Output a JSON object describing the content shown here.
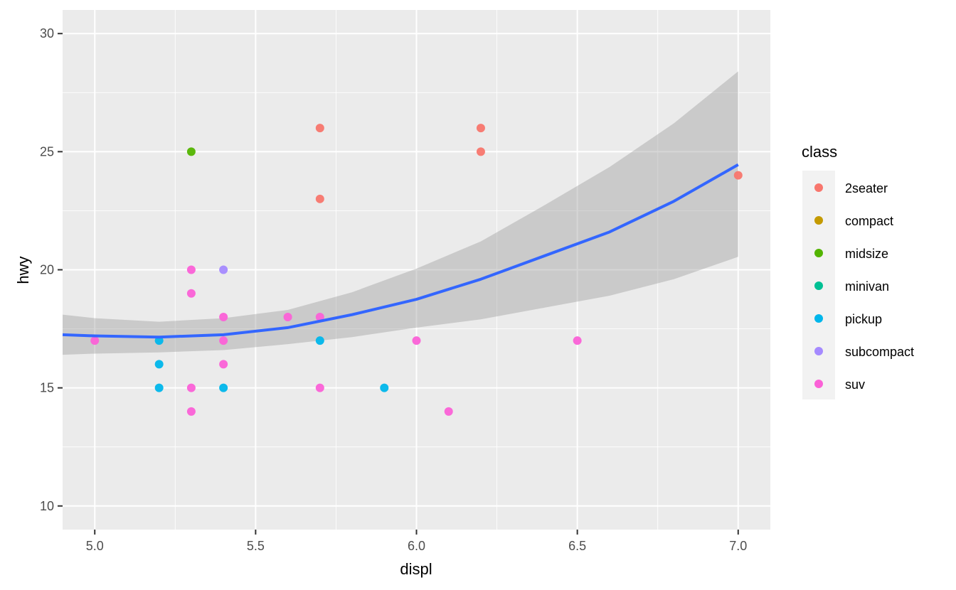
{
  "chart_data": {
    "type": "scatter",
    "title": "",
    "xlabel": "displ",
    "ylabel": "hwy",
    "xlim": [
      4.9,
      7.1
    ],
    "ylim": [
      9,
      31
    ],
    "x_ticks": [
      5.0,
      5.5,
      6.0,
      6.5,
      7.0
    ],
    "x_tick_labels": [
      "5.0",
      "5.5",
      "6.0",
      "6.5",
      "7.0"
    ],
    "y_ticks": [
      10,
      15,
      20,
      25,
      30
    ],
    "y_tick_labels": [
      "10",
      "15",
      "20",
      "25",
      "30"
    ],
    "grid": true,
    "legend": {
      "title": "class",
      "position": "right",
      "entries": [
        {
          "name": "2seater",
          "color": "#F8766D"
        },
        {
          "name": "compact",
          "color": "#C49A00"
        },
        {
          "name": "midsize",
          "color": "#53B400"
        },
        {
          "name": "minivan",
          "color": "#00C094"
        },
        {
          "name": "pickup",
          "color": "#00B6EB"
        },
        {
          "name": "subcompact",
          "color": "#A58AFF"
        },
        {
          "name": "suv",
          "color": "#FB61D7"
        }
      ]
    },
    "points": [
      {
        "x": 5.7,
        "y": 26,
        "class": "2seater"
      },
      {
        "x": 5.7,
        "y": 23,
        "class": "2seater"
      },
      {
        "x": 6.2,
        "y": 26,
        "class": "2seater"
      },
      {
        "x": 6.2,
        "y": 25,
        "class": "2seater"
      },
      {
        "x": 7.0,
        "y": 24,
        "class": "2seater"
      },
      {
        "x": 5.3,
        "y": 25,
        "class": "midsize"
      },
      {
        "x": 5.2,
        "y": 17,
        "class": "pickup"
      },
      {
        "x": 5.2,
        "y": 16,
        "class": "pickup"
      },
      {
        "x": 5.2,
        "y": 15,
        "class": "pickup"
      },
      {
        "x": 5.4,
        "y": 15,
        "class": "pickup"
      },
      {
        "x": 5.7,
        "y": 17,
        "class": "pickup"
      },
      {
        "x": 5.9,
        "y": 15,
        "class": "pickup"
      },
      {
        "x": 5.4,
        "y": 20,
        "class": "subcompact"
      },
      {
        "x": 5.0,
        "y": 17,
        "class": "suv"
      },
      {
        "x": 5.3,
        "y": 20,
        "class": "suv"
      },
      {
        "x": 5.3,
        "y": 19,
        "class": "suv"
      },
      {
        "x": 5.3,
        "y": 15,
        "class": "suv"
      },
      {
        "x": 5.3,
        "y": 14,
        "class": "suv"
      },
      {
        "x": 5.4,
        "y": 18,
        "class": "suv"
      },
      {
        "x": 5.4,
        "y": 17,
        "class": "suv"
      },
      {
        "x": 5.4,
        "y": 16,
        "class": "suv"
      },
      {
        "x": 5.6,
        "y": 18,
        "class": "suv"
      },
      {
        "x": 5.7,
        "y": 18,
        "class": "suv"
      },
      {
        "x": 5.7,
        "y": 15,
        "class": "suv"
      },
      {
        "x": 6.0,
        "y": 17,
        "class": "suv"
      },
      {
        "x": 6.1,
        "y": 14,
        "class": "suv"
      },
      {
        "x": 6.5,
        "y": 17,
        "class": "suv"
      }
    ],
    "smooth": {
      "color": "#3366FF",
      "ribbon_color": "#999999",
      "x": [
        4.9,
        5.0,
        5.2,
        5.4,
        5.6,
        5.8,
        6.0,
        6.2,
        6.4,
        6.6,
        6.8,
        7.0
      ],
      "y": [
        17.25,
        17.2,
        17.15,
        17.25,
        17.55,
        18.1,
        18.75,
        19.6,
        20.6,
        21.6,
        22.9,
        24.45
      ],
      "ymin": [
        16.4,
        16.45,
        16.5,
        16.6,
        16.85,
        17.15,
        17.55,
        17.9,
        18.4,
        18.9,
        19.6,
        20.55
      ],
      "ymax": [
        18.1,
        17.95,
        17.8,
        17.95,
        18.3,
        19.05,
        20.05,
        21.2,
        22.75,
        24.35,
        26.2,
        28.4
      ]
    }
  }
}
